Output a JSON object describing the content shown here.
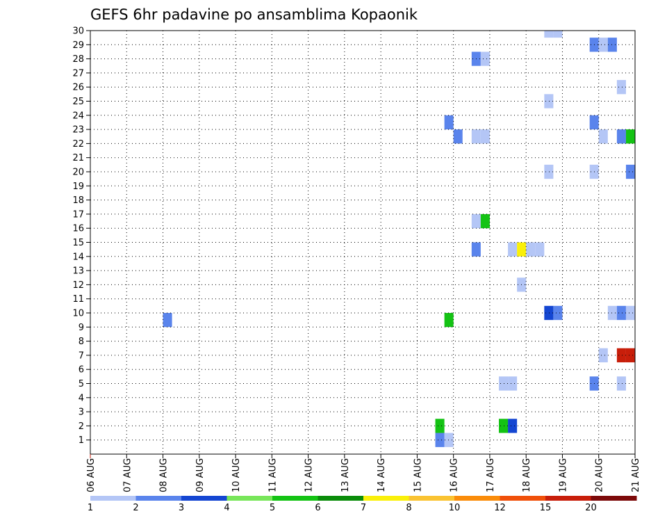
{
  "chart_data": {
    "type": "heatmap",
    "title": "GEFS 6hr padavine po ansamblima Kopaonik",
    "xlabel": "",
    "ylabel": "",
    "x_ticks": [
      "06 AUG",
      "07 AUG",
      "08 AUG",
      "09 AUG",
      "10 AUG",
      "11 AUG",
      "12 AUG",
      "13 AUG",
      "14 AUG",
      "15 AUG",
      "16 AUG",
      "17 AUG",
      "18 AUG",
      "19 AUG",
      "20 AUG",
      "21 AUG"
    ],
    "x_range_days": [
      0,
      15
    ],
    "y_ticks": [
      1,
      2,
      3,
      4,
      5,
      6,
      7,
      8,
      9,
      10,
      11,
      12,
      13,
      14,
      15,
      16,
      17,
      18,
      19,
      20,
      21,
      22,
      23,
      24,
      25,
      26,
      27,
      28,
      29,
      30
    ],
    "ylim": [
      0,
      30
    ],
    "grid": true,
    "colorbar": {
      "levels": [
        "1",
        "2",
        "3",
        "4",
        "5",
        "6",
        "7",
        "8",
        "10",
        "12",
        "15",
        "20"
      ],
      "colors": [
        "#b4c6f6",
        "#5a84ec",
        "#1446d2",
        "#78e65a",
        "#14c314",
        "#0a8c0a",
        "#faf00a",
        "#fac332",
        "#fa8c0a",
        "#f0500a",
        "#c81e0a",
        "#7d0a0a"
      ]
    },
    "cells": [
      {
        "day": 2.0,
        "y0": 9,
        "y1": 10,
        "color": "#5a84ec"
      },
      {
        "day": 9.5,
        "y0": 0.5,
        "y1": 1.5,
        "color": "#5a84ec"
      },
      {
        "day": 9.75,
        "y0": 0.5,
        "y1": 1.5,
        "color": "#b4c6f6"
      },
      {
        "day": 9.5,
        "y0": 1.5,
        "y1": 2.5,
        "color": "#14c314"
      },
      {
        "day": 9.75,
        "y0": 9,
        "y1": 10,
        "color": "#14c314"
      },
      {
        "day": 9.75,
        "y0": 23,
        "y1": 24,
        "color": "#5a84ec"
      },
      {
        "day": 10.0,
        "y0": 22,
        "y1": 23,
        "color": "#5a84ec"
      },
      {
        "day": 10.5,
        "y0": 14,
        "y1": 15,
        "color": "#5a84ec"
      },
      {
        "day": 10.5,
        "y0": 16,
        "y1": 17,
        "color": "#b4c6f6"
      },
      {
        "day": 10.75,
        "y0": 16,
        "y1": 17,
        "color": "#14c314"
      },
      {
        "day": 10.5,
        "y0": 22,
        "y1": 23,
        "color": "#b4c6f6"
      },
      {
        "day": 10.75,
        "y0": 22,
        "y1": 23,
        "color": "#b4c6f6"
      },
      {
        "day": 10.5,
        "y0": 27.5,
        "y1": 28.5,
        "color": "#5a84ec"
      },
      {
        "day": 10.75,
        "y0": 27.5,
        "y1": 28.5,
        "color": "#b4c6f6"
      },
      {
        "day": 11.25,
        "y0": 4.5,
        "y1": 5.5,
        "color": "#b4c6f6"
      },
      {
        "day": 11.5,
        "y0": 4.5,
        "y1": 5.5,
        "color": "#b4c6f6"
      },
      {
        "day": 11.25,
        "y0": 1.5,
        "y1": 2.5,
        "color": "#14c314"
      },
      {
        "day": 11.5,
        "y0": 1.5,
        "y1": 2.5,
        "color": "#1446d2"
      },
      {
        "day": 11.5,
        "y0": 14,
        "y1": 15,
        "color": "#b4c6f6"
      },
      {
        "day": 11.75,
        "y0": 14,
        "y1": 15,
        "color": "#faf00a"
      },
      {
        "day": 12.0,
        "y0": 14,
        "y1": 15,
        "color": "#b4c6f6"
      },
      {
        "day": 12.25,
        "y0": 14,
        "y1": 15,
        "color": "#b4c6f6"
      },
      {
        "day": 11.75,
        "y0": 11.5,
        "y1": 12.5,
        "color": "#b4c6f6"
      },
      {
        "day": 12.5,
        "y0": 9.5,
        "y1": 10.5,
        "color": "#1446d2"
      },
      {
        "day": 12.75,
        "y0": 9.5,
        "y1": 10.5,
        "color": "#5a84ec"
      },
      {
        "day": 12.5,
        "y0": 19.5,
        "y1": 20.5,
        "color": "#b4c6f6"
      },
      {
        "day": 12.5,
        "y0": 24.5,
        "y1": 25.5,
        "color": "#b4c6f6"
      },
      {
        "day": 12.5,
        "y0": 29.5,
        "y1": 30,
        "color": "#b4c6f6"
      },
      {
        "day": 12.75,
        "y0": 29.5,
        "y1": 30,
        "color": "#b4c6f6"
      },
      {
        "day": 13.75,
        "y0": 4.5,
        "y1": 5.5,
        "color": "#5a84ec"
      },
      {
        "day": 14.0,
        "y0": 6.5,
        "y1": 7.5,
        "color": "#b4c6f6"
      },
      {
        "day": 14.25,
        "y0": 9.5,
        "y1": 10.5,
        "color": "#b4c6f6"
      },
      {
        "day": 14.5,
        "y0": 9.5,
        "y1": 10.5,
        "color": "#5a84ec"
      },
      {
        "day": 14.75,
        "y0": 9.5,
        "y1": 10.5,
        "color": "#b4c6f6"
      },
      {
        "day": 13.75,
        "y0": 19.5,
        "y1": 20.5,
        "color": "#b4c6f6"
      },
      {
        "day": 14.0,
        "y0": 22,
        "y1": 23,
        "color": "#b4c6f6"
      },
      {
        "day": 13.75,
        "y0": 23,
        "y1": 24,
        "color": "#5a84ec"
      },
      {
        "day": 13.75,
        "y0": 28.5,
        "y1": 29.5,
        "color": "#5a84ec"
      },
      {
        "day": 14.0,
        "y0": 28.5,
        "y1": 29.5,
        "color": "#b4c6f6"
      },
      {
        "day": 14.25,
        "y0": 28.5,
        "y1": 29.5,
        "color": "#5a84ec"
      },
      {
        "day": 14.5,
        "y0": 4.5,
        "y1": 5.5,
        "color": "#b4c6f6"
      },
      {
        "day": 14.5,
        "y0": 6.5,
        "y1": 7.5,
        "color": "#c81e0a"
      },
      {
        "day": 14.75,
        "y0": 6.5,
        "y1": 7.5,
        "color": "#c81e0a"
      },
      {
        "day": 14.75,
        "y0": 19.5,
        "y1": 20.5,
        "color": "#5a84ec"
      },
      {
        "day": 14.5,
        "y0": 22,
        "y1": 23,
        "color": "#5a84ec"
      },
      {
        "day": 14.75,
        "y0": 22,
        "y1": 23,
        "color": "#14c314"
      },
      {
        "day": 14.5,
        "y0": 25.5,
        "y1": 26.5,
        "color": "#b4c6f6"
      }
    ]
  }
}
